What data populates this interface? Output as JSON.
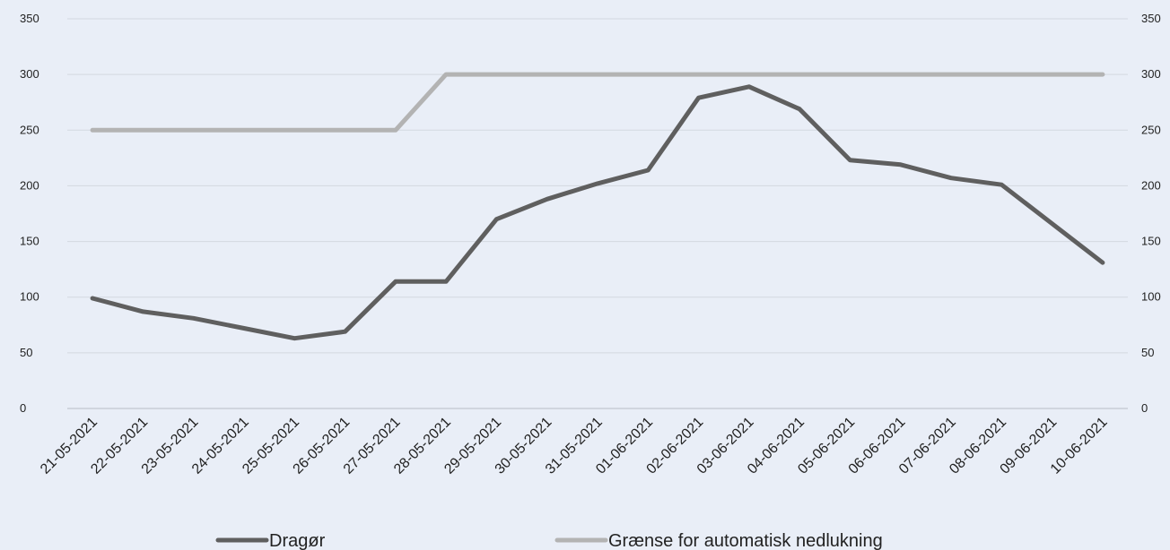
{
  "chart_data": {
    "type": "line",
    "title": "",
    "xlabel": "",
    "ylabel": "",
    "ylim": [
      0,
      350
    ],
    "y_ticks": [
      0,
      50,
      100,
      150,
      200,
      250,
      300,
      350
    ],
    "secondary_y_ticks": [
      0,
      50,
      100,
      150,
      200,
      250,
      300,
      350
    ],
    "grid": true,
    "legend_position": "bottom",
    "categories": [
      "21-05-2021",
      "22-05-2021",
      "23-05-2021",
      "24-05-2021",
      "25-05-2021",
      "26-05-2021",
      "27-05-2021",
      "28-05-2021",
      "29-05-2021",
      "30-05-2021",
      "31-05-2021",
      "01-06-2021",
      "02-06-2021",
      "03-06-2021",
      "04-06-2021",
      "05-06-2021",
      "06-06-2021",
      "07-06-2021",
      "08-06-2021",
      "09-06-2021",
      "10-06-2021"
    ],
    "series": [
      {
        "name": "Dragør",
        "color": "#5f5f5f",
        "values": [
          99,
          87,
          81,
          72,
          63,
          69,
          114,
          114,
          170,
          188,
          202,
          214,
          279,
          289,
          269,
          223,
          219,
          207,
          201,
          166,
          131
        ]
      },
      {
        "name": "Grænse for automatisk nedlukning",
        "color": "#b3b3b3",
        "values": [
          250,
          250,
          250,
          250,
          250,
          250,
          250,
          300,
          300,
          300,
          300,
          300,
          300,
          300,
          300,
          300,
          300,
          300,
          300,
          300,
          300
        ]
      }
    ]
  }
}
